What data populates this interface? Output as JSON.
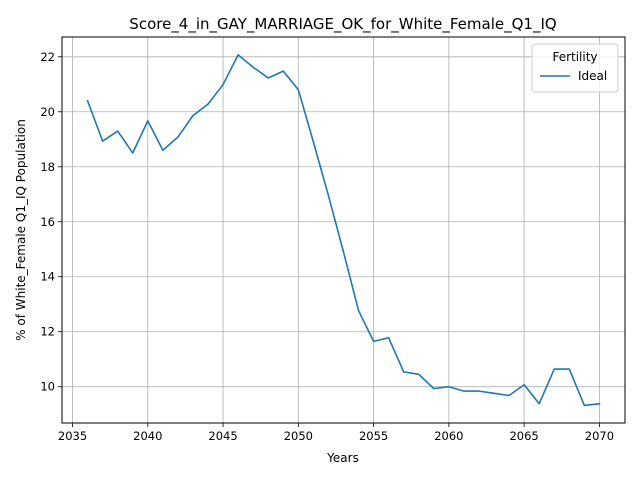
{
  "chart_data": {
    "type": "line",
    "title": "Score_4_in_GAY_MARRIAGE_OK_for_White_Female_Q1_IQ",
    "xlabel": "Years",
    "ylabel": "% of White_Female Q1_IQ Population",
    "xlim": [
      2034.3,
      2071.7
    ],
    "ylim": [
      8.68,
      22.72
    ],
    "xticks": [
      2035,
      2040,
      2045,
      2050,
      2055,
      2060,
      2065,
      2070
    ],
    "yticks": [
      10,
      12,
      14,
      16,
      18,
      20,
      22
    ],
    "grid": true,
    "legend": {
      "title": "Fertility",
      "placement": "top-right"
    },
    "series": [
      {
        "name": "Ideal",
        "color": "#1f77b4",
        "x": [
          2036,
          2037,
          2038,
          2039,
          2040,
          2041,
          2042,
          2043,
          2044,
          2045,
          2046,
          2047,
          2048,
          2049,
          2050,
          2051,
          2052,
          2053,
          2054,
          2055,
          2056,
          2057,
          2058,
          2059,
          2060,
          2061,
          2062,
          2063,
          2064,
          2065,
          2066,
          2067,
          2068,
          2069,
          2070
        ],
        "values": [
          20.4,
          18.93,
          19.3,
          18.5,
          19.67,
          18.6,
          19.08,
          19.86,
          20.28,
          20.99,
          22.07,
          21.62,
          21.23,
          21.48,
          20.8,
          18.9,
          16.95,
          14.9,
          12.77,
          11.65,
          11.78,
          10.54,
          10.45,
          9.93,
          10.0,
          9.84,
          9.84,
          9.76,
          9.68,
          10.07,
          9.38,
          10.64,
          10.64,
          9.32,
          9.38
        ]
      }
    ]
  }
}
